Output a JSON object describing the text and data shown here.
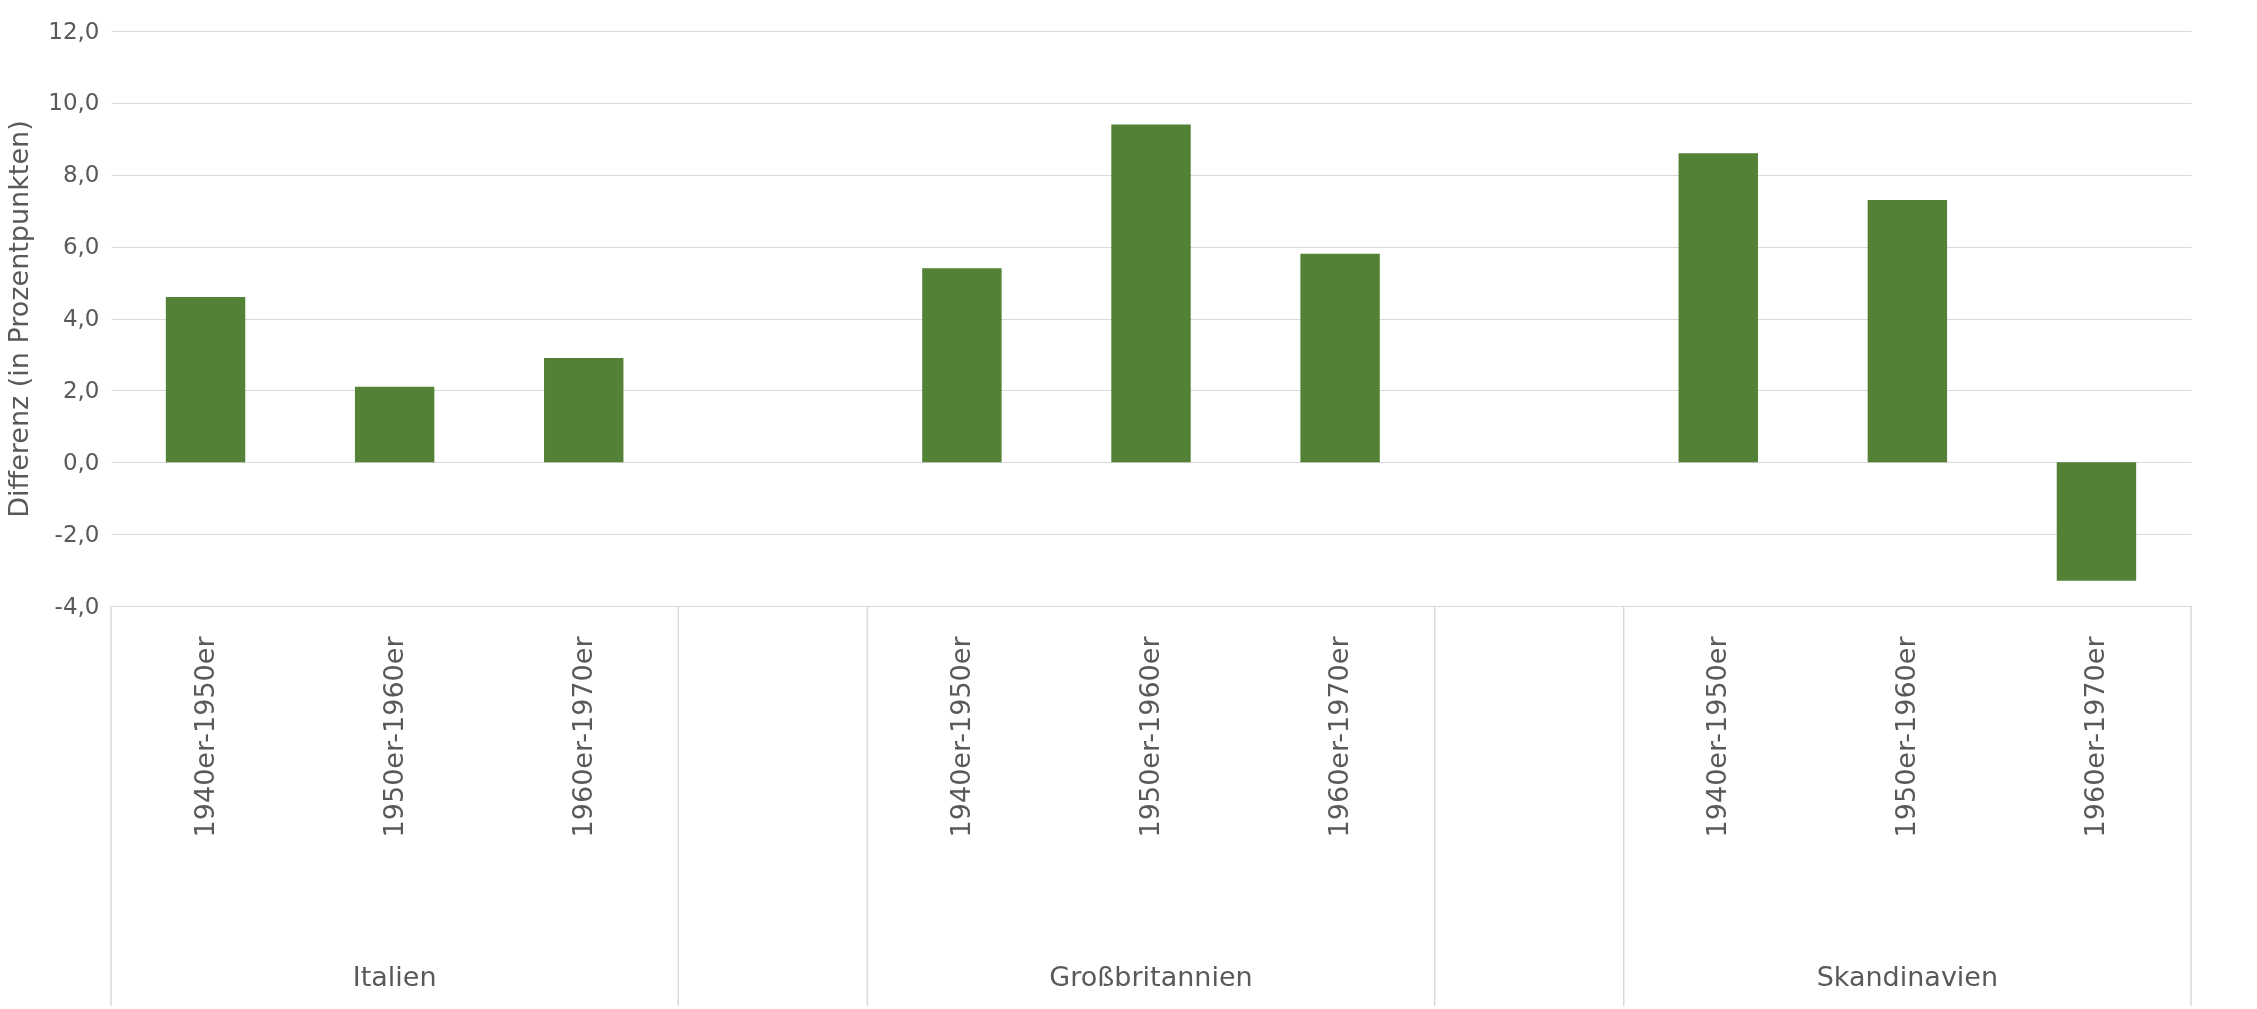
{
  "chart_data": {
    "type": "bar",
    "ylabel": "Differenz (in Prozentpunkten)",
    "categories": [
      "1940er-1950er",
      "1950er-1960er",
      "1960er-1970er",
      null,
      "1940er-1950er",
      "1950er-1960er",
      "1960er-1970er",
      null,
      "1940er-1950er",
      "1950er-1960er",
      "1960er-1970er"
    ],
    "values": [
      4.6,
      2.1,
      2.9,
      null,
      5.4,
      9.4,
      5.8,
      null,
      8.6,
      7.3,
      -3.3
    ],
    "color": "#538135",
    "annotations": [
      "Italien",
      "Großbritannien",
      "Skandinavien"
    ],
    "ylim": [
      -4,
      12
    ],
    "yticks": [
      {
        "value": -4,
        "label": "-4,0"
      },
      {
        "value": -2,
        "label": "-2,0"
      },
      {
        "value": 0,
        "label": "0,0"
      },
      {
        "value": 2,
        "label": "2,0"
      },
      {
        "value": 4,
        "label": "4,0"
      },
      {
        "value": 6,
        "label": "6,0"
      },
      {
        "value": 8,
        "label": "8,0"
      },
      {
        "value": 10,
        "label": "10,0"
      },
      {
        "value": 12,
        "label": "12,0"
      }
    ],
    "grid": "y"
  }
}
